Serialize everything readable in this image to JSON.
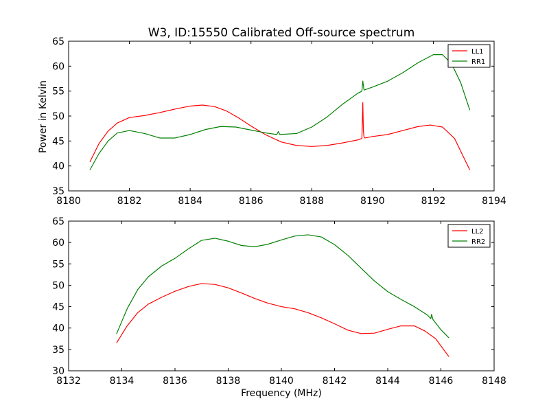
{
  "figure": {
    "title": "W3, ID:15550 Calibrated Off-source spectrum"
  },
  "colors": {
    "LL": "#ff0000",
    "RR": "#008000"
  },
  "chart_data": [
    {
      "type": "line",
      "title": "W3, ID:15550 Calibrated Off-source spectrum",
      "xlabel": "",
      "ylabel": "Power in Kelvin",
      "xlim": [
        8180,
        8194
      ],
      "ylim": [
        35,
        65
      ],
      "xticks": [
        8180,
        8182,
        8184,
        8186,
        8188,
        8190,
        8192,
        8194
      ],
      "yticks": [
        35,
        40,
        45,
        50,
        55,
        60,
        65
      ],
      "legend_position": "top-right",
      "grid": false,
      "series": [
        {
          "name": "LL1",
          "color": "#ff0000",
          "x": [
            8180.7,
            8181.0,
            8181.3,
            8181.6,
            8182.0,
            8182.5,
            8183.0,
            8183.5,
            8184.0,
            8184.4,
            8184.8,
            8185.2,
            8185.6,
            8186.0,
            8186.5,
            8187.0,
            8187.5,
            8188.0,
            8188.5,
            8189.0,
            8189.5,
            8189.65,
            8189.68,
            8189.7,
            8189.72,
            8189.75,
            8190.0,
            8190.5,
            8191.0,
            8191.5,
            8191.9,
            8192.3,
            8192.7,
            8193.2
          ],
          "y": [
            40.8,
            44.5,
            47.0,
            48.6,
            49.7,
            50.1,
            50.7,
            51.4,
            52.0,
            52.2,
            51.9,
            51.0,
            49.6,
            48.0,
            46.2,
            44.8,
            44.1,
            43.9,
            44.1,
            44.6,
            45.2,
            45.5,
            52.7,
            47.0,
            45.8,
            45.6,
            45.9,
            46.3,
            47.1,
            47.9,
            48.2,
            47.8,
            45.5,
            39.2
          ]
        },
        {
          "name": "RR1",
          "color": "#008000",
          "x": [
            8180.7,
            8181.0,
            8181.3,
            8181.6,
            8182.0,
            8182.5,
            8183.0,
            8183.5,
            8184.0,
            8184.5,
            8185.0,
            8185.5,
            8186.0,
            8186.5,
            8186.85,
            8186.9,
            8186.95,
            8187.5,
            8188.0,
            8188.5,
            8189.0,
            8189.5,
            8189.65,
            8189.68,
            8189.72,
            8190.0,
            8190.5,
            8191.0,
            8191.5,
            8192.0,
            8192.3,
            8192.6,
            8192.9,
            8193.2
          ],
          "y": [
            39.2,
            42.5,
            45.0,
            46.6,
            47.1,
            46.5,
            45.6,
            45.6,
            46.3,
            47.3,
            47.9,
            47.8,
            47.2,
            46.6,
            46.3,
            46.9,
            46.3,
            46.5,
            47.8,
            49.8,
            52.3,
            54.5,
            55.0,
            57.0,
            55.2,
            55.8,
            57.0,
            58.7,
            60.7,
            62.3,
            62.3,
            60.5,
            56.7,
            51.2
          ]
        }
      ]
    },
    {
      "type": "line",
      "title": "",
      "xlabel": "Frequency (MHz)",
      "ylabel": "",
      "xlim": [
        8132,
        8148
      ],
      "ylim": [
        30,
        65
      ],
      "xticks": [
        8132,
        8134,
        8136,
        8138,
        8140,
        8142,
        8144,
        8146,
        8148
      ],
      "yticks": [
        30,
        35,
        40,
        45,
        50,
        55,
        60,
        65
      ],
      "legend_position": "top-right",
      "grid": false,
      "series": [
        {
          "name": "LL2",
          "color": "#ff0000",
          "x": [
            8133.8,
            8134.2,
            8134.6,
            8135.0,
            8135.5,
            8136.0,
            8136.5,
            8137.0,
            8137.5,
            8138.0,
            8138.5,
            8139.0,
            8139.5,
            8140.0,
            8140.5,
            8141.0,
            8141.5,
            8142.0,
            8142.5,
            8143.0,
            8143.5,
            8144.0,
            8144.5,
            8145.0,
            8145.4,
            8145.8,
            8146.1,
            8146.3
          ],
          "y": [
            36.5,
            40.5,
            43.6,
            45.6,
            47.2,
            48.6,
            49.7,
            50.4,
            50.2,
            49.4,
            48.2,
            46.9,
            45.8,
            45.0,
            44.5,
            43.6,
            42.4,
            41.0,
            39.5,
            38.7,
            38.8,
            39.7,
            40.5,
            40.5,
            39.3,
            37.5,
            35.0,
            33.3
          ]
        },
        {
          "name": "RR2",
          "color": "#008000",
          "x": [
            8133.8,
            8134.2,
            8134.6,
            8135.0,
            8135.5,
            8136.0,
            8136.5,
            8137.0,
            8137.5,
            8138.0,
            8138.5,
            8139.0,
            8139.5,
            8140.0,
            8140.5,
            8141.0,
            8141.5,
            8142.0,
            8142.5,
            8143.0,
            8143.5,
            8144.0,
            8144.5,
            8145.0,
            8145.5,
            8145.62,
            8145.65,
            8145.7,
            8146.0,
            8146.3
          ],
          "y": [
            38.6,
            44.5,
            49.0,
            52.0,
            54.5,
            56.3,
            58.5,
            60.5,
            61.0,
            60.3,
            59.3,
            59.0,
            59.6,
            60.6,
            61.5,
            61.8,
            61.3,
            59.5,
            57.0,
            54.0,
            51.0,
            48.5,
            46.7,
            45.0,
            43.0,
            42.2,
            43.2,
            42.0,
            39.6,
            37.7
          ]
        }
      ]
    }
  ]
}
